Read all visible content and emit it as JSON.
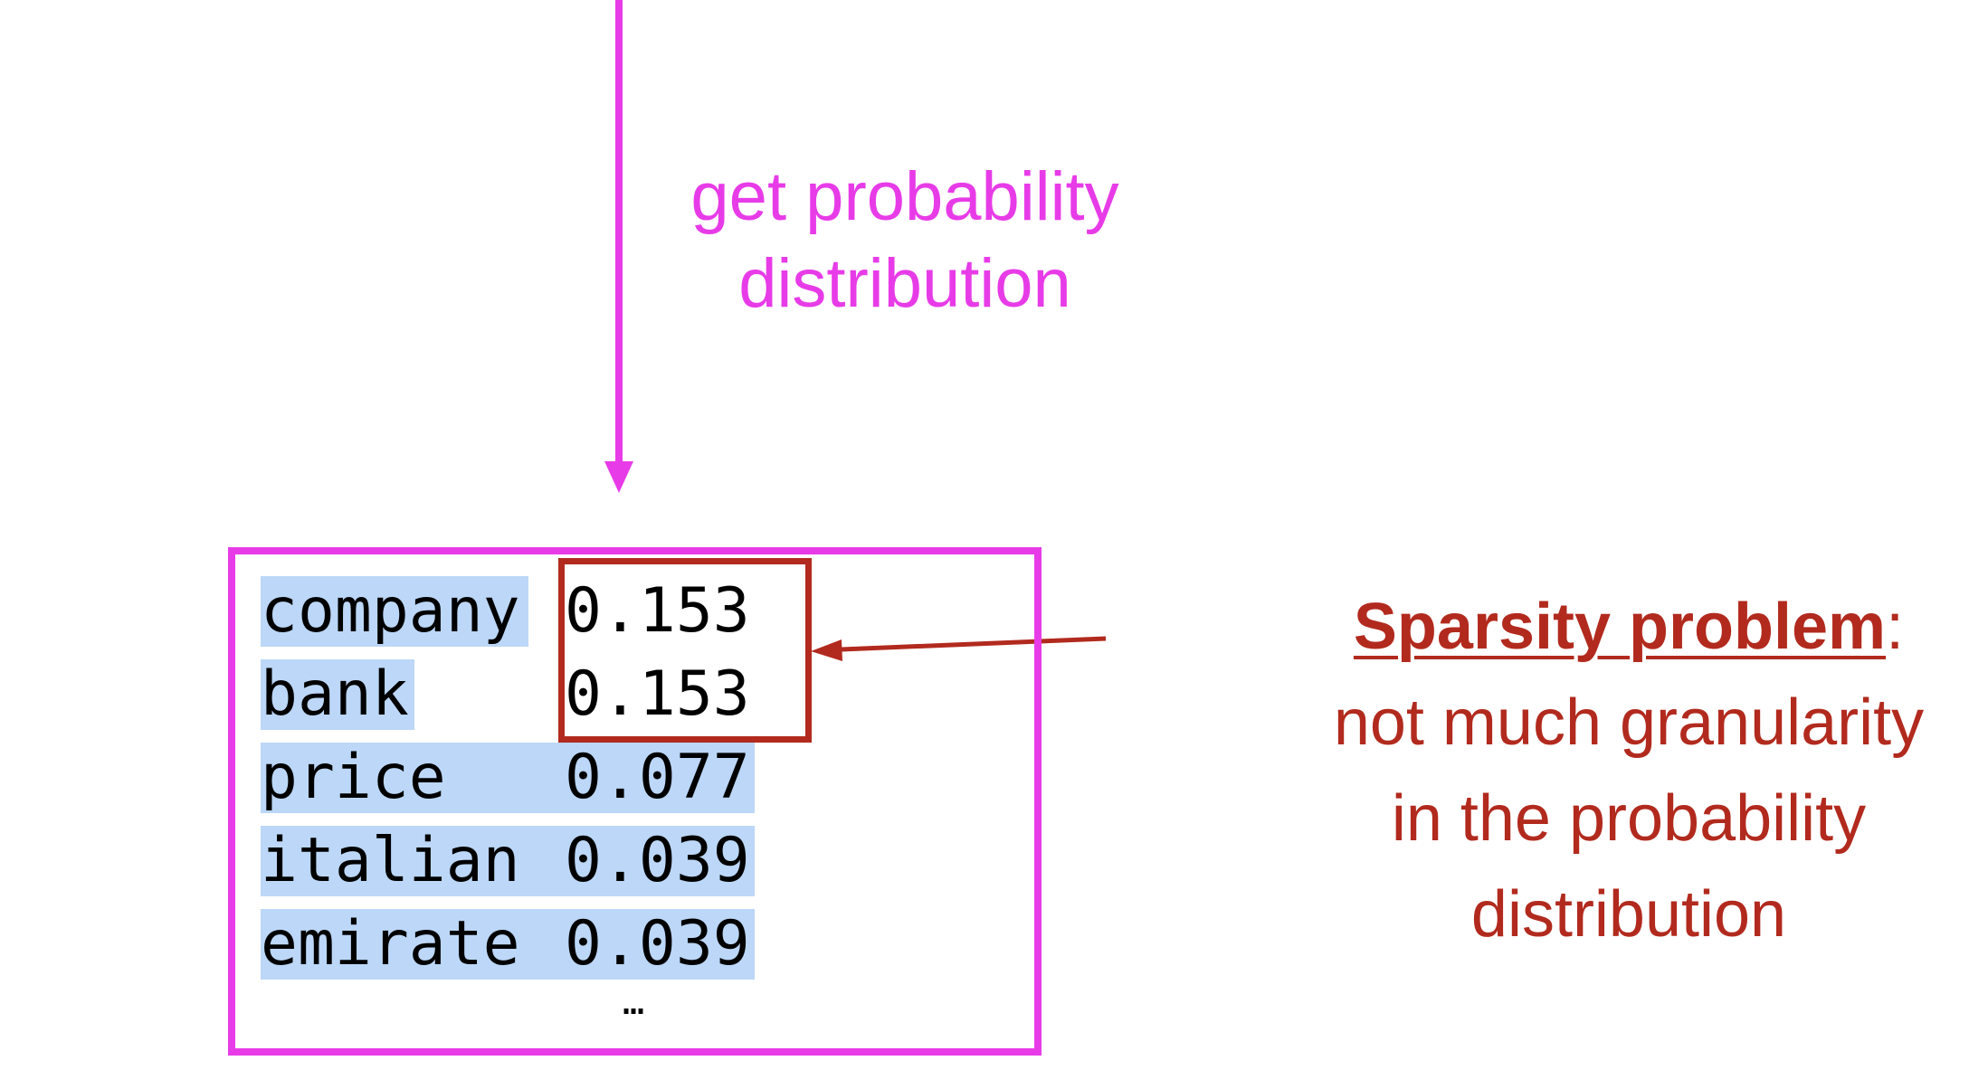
{
  "caption": {
    "line1": "get probability",
    "line2": "distribution"
  },
  "distribution": {
    "rows": [
      {
        "word": "company",
        "prob": "0.153"
      },
      {
        "word": "bank",
        "prob": "0.153"
      },
      {
        "word": "price",
        "prob": "0.077"
      },
      {
        "word": "italian",
        "prob": "0.039"
      },
      {
        "word": "emirate",
        "prob": "0.039"
      }
    ],
    "ellipsis": "…"
  },
  "note": {
    "title": "Sparsity problem",
    "colon": ":",
    "line1": "not much granularity",
    "line2": "in the probability",
    "line3": "distribution"
  },
  "colors": {
    "magenta": "#e83be8",
    "red": "#b22a1e",
    "highlight": "#bcd7f7"
  }
}
